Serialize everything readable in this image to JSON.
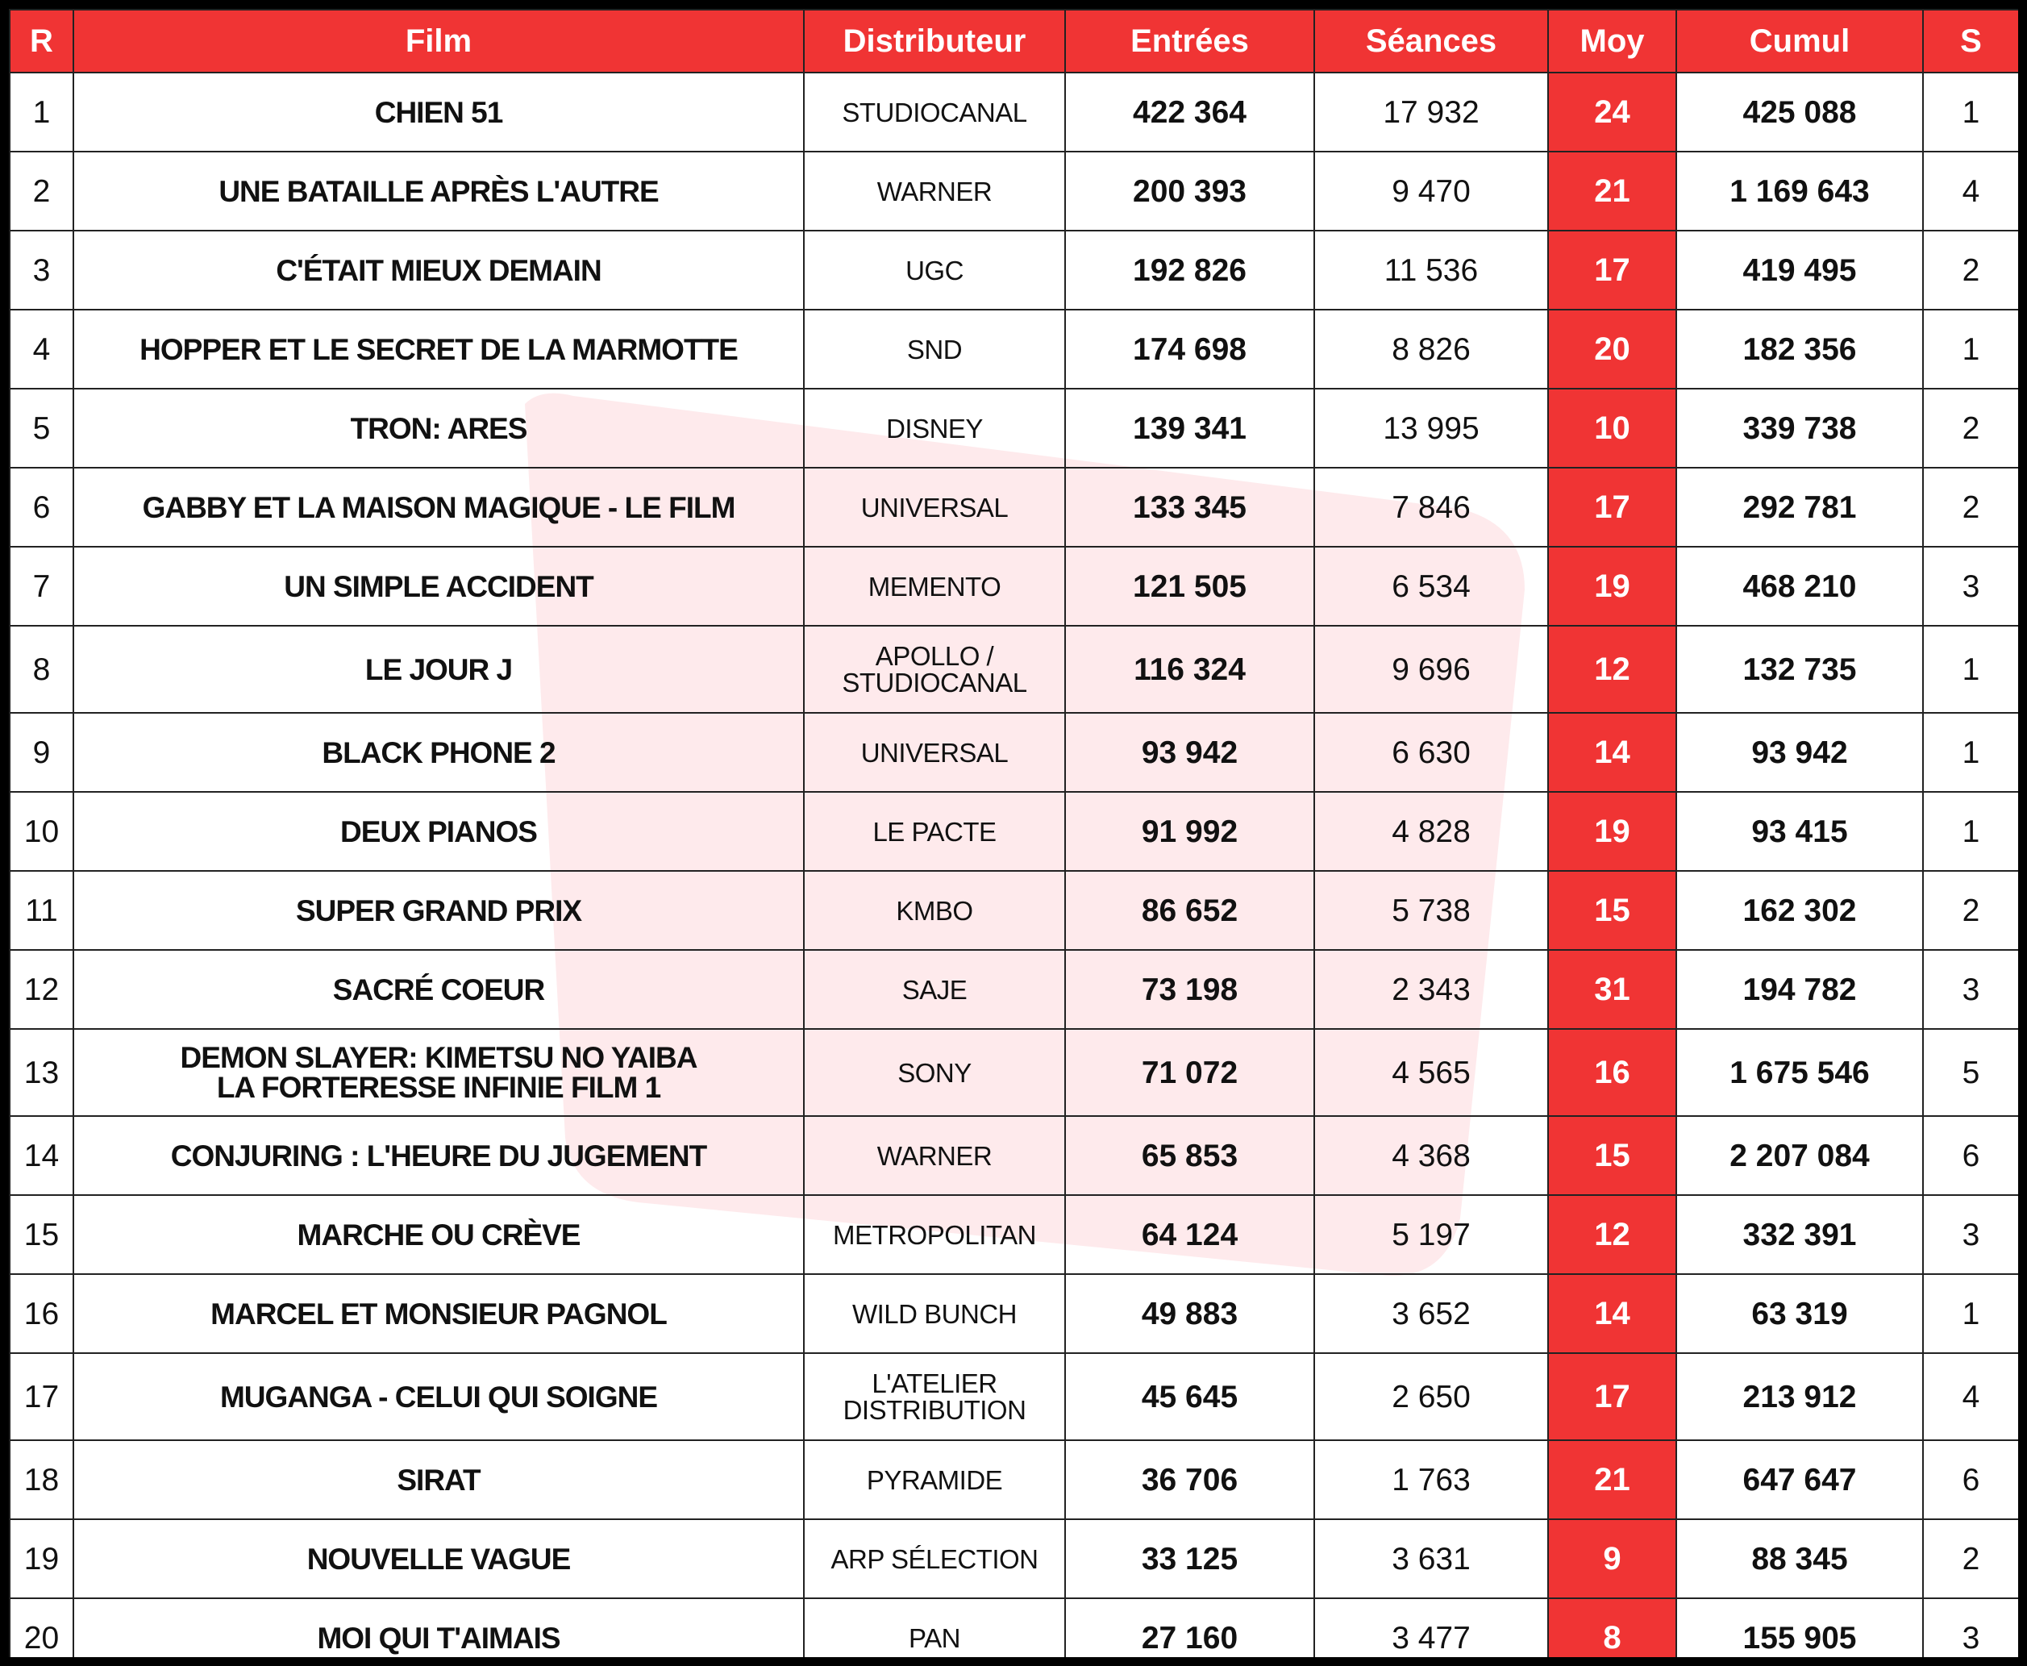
{
  "table": {
    "header": [
      "R",
      "Film",
      "Distributeur",
      "Entrées",
      "Séances",
      "Moy",
      "Cumul",
      "S"
    ],
    "rows": [
      [
        1,
        "CHIEN 51",
        "STUDIOCANAL",
        "422 364",
        "17 932",
        24,
        "425 088",
        1
      ],
      [
        2,
        "UNE BATAILLE APRÈS L'AUTRE",
        "WARNER",
        "200 393",
        "9 470",
        21,
        "1 169 643",
        4
      ],
      [
        3,
        "C'ÉTAIT MIEUX DEMAIN",
        "UGC",
        "192 826",
        "11 536",
        17,
        "419 495",
        2
      ],
      [
        4,
        "HOPPER ET LE SECRET DE LA MARMOTTE",
        "SND",
        "174 698",
        "8 826",
        20,
        "182 356",
        1
      ],
      [
        5,
        "TRON: ARES",
        "DISNEY",
        "139 341",
        "13 995",
        10,
        "339 738",
        2
      ],
      [
        6,
        "GABBY ET LA MAISON MAGIQUE - LE FILM",
        "UNIVERSAL",
        "133 345",
        "7 846",
        17,
        "292 781",
        2
      ],
      [
        7,
        "UN SIMPLE ACCIDENT",
        "MEMENTO",
        "121 505",
        "6 534",
        19,
        "468 210",
        3
      ],
      [
        8,
        "LE JOUR J",
        "APOLLO /\nSTUDIOCANAL",
        "116 324",
        "9 696",
        12,
        "132 735",
        1
      ],
      [
        9,
        "BLACK PHONE 2",
        "UNIVERSAL",
        "93 942",
        "6 630",
        14,
        "93 942",
        1
      ],
      [
        10,
        "DEUX PIANOS",
        "LE PACTE",
        "91 992",
        "4 828",
        19,
        "93 415",
        1
      ],
      [
        11,
        "SUPER GRAND PRIX",
        "KMBO",
        "86 652",
        "5 738",
        15,
        "162 302",
        2
      ],
      [
        12,
        "SACRÉ COEUR",
        "SAJE",
        "73 198",
        "2 343",
        31,
        "194 782",
        3
      ],
      [
        13,
        "DEMON SLAYER: KIMETSU NO YAIBA\nLA FORTERESSE INFINIE FILM 1",
        "SONY",
        "71 072",
        "4 565",
        16,
        "1 675 546",
        5
      ],
      [
        14,
        "CONJURING : L'HEURE DU JUGEMENT",
        "WARNER",
        "65 853",
        "4 368",
        15,
        "2 207 084",
        6
      ],
      [
        15,
        "MARCHE OU CRÈVE",
        "METROPOLITAN",
        "64 124",
        "5 197",
        12,
        "332 391",
        3
      ],
      [
        16,
        "MARCEL ET MONSIEUR PAGNOL",
        "WILD BUNCH",
        "49 883",
        "3 652",
        14,
        "63 319",
        1
      ],
      [
        17,
        "MUGANGA - CELUI QUI SOIGNE",
        "L'ATELIER\nDISTRIBUTION",
        "45 645",
        "2 650",
        17,
        "213 912",
        4
      ],
      [
        18,
        "SIRAT",
        "PYRAMIDE",
        "36 706",
        "1 763",
        21,
        "647 647",
        6
      ],
      [
        19,
        "NOUVELLE VAGUE",
        "ARP SÉLECTION",
        "33 125",
        "3 631",
        9,
        "88 345",
        2
      ],
      [
        20,
        "MOI QUI T'AIMAIS",
        "PAN",
        "27 160",
        "3 477",
        8,
        "155 905",
        3
      ]
    ]
  }
}
